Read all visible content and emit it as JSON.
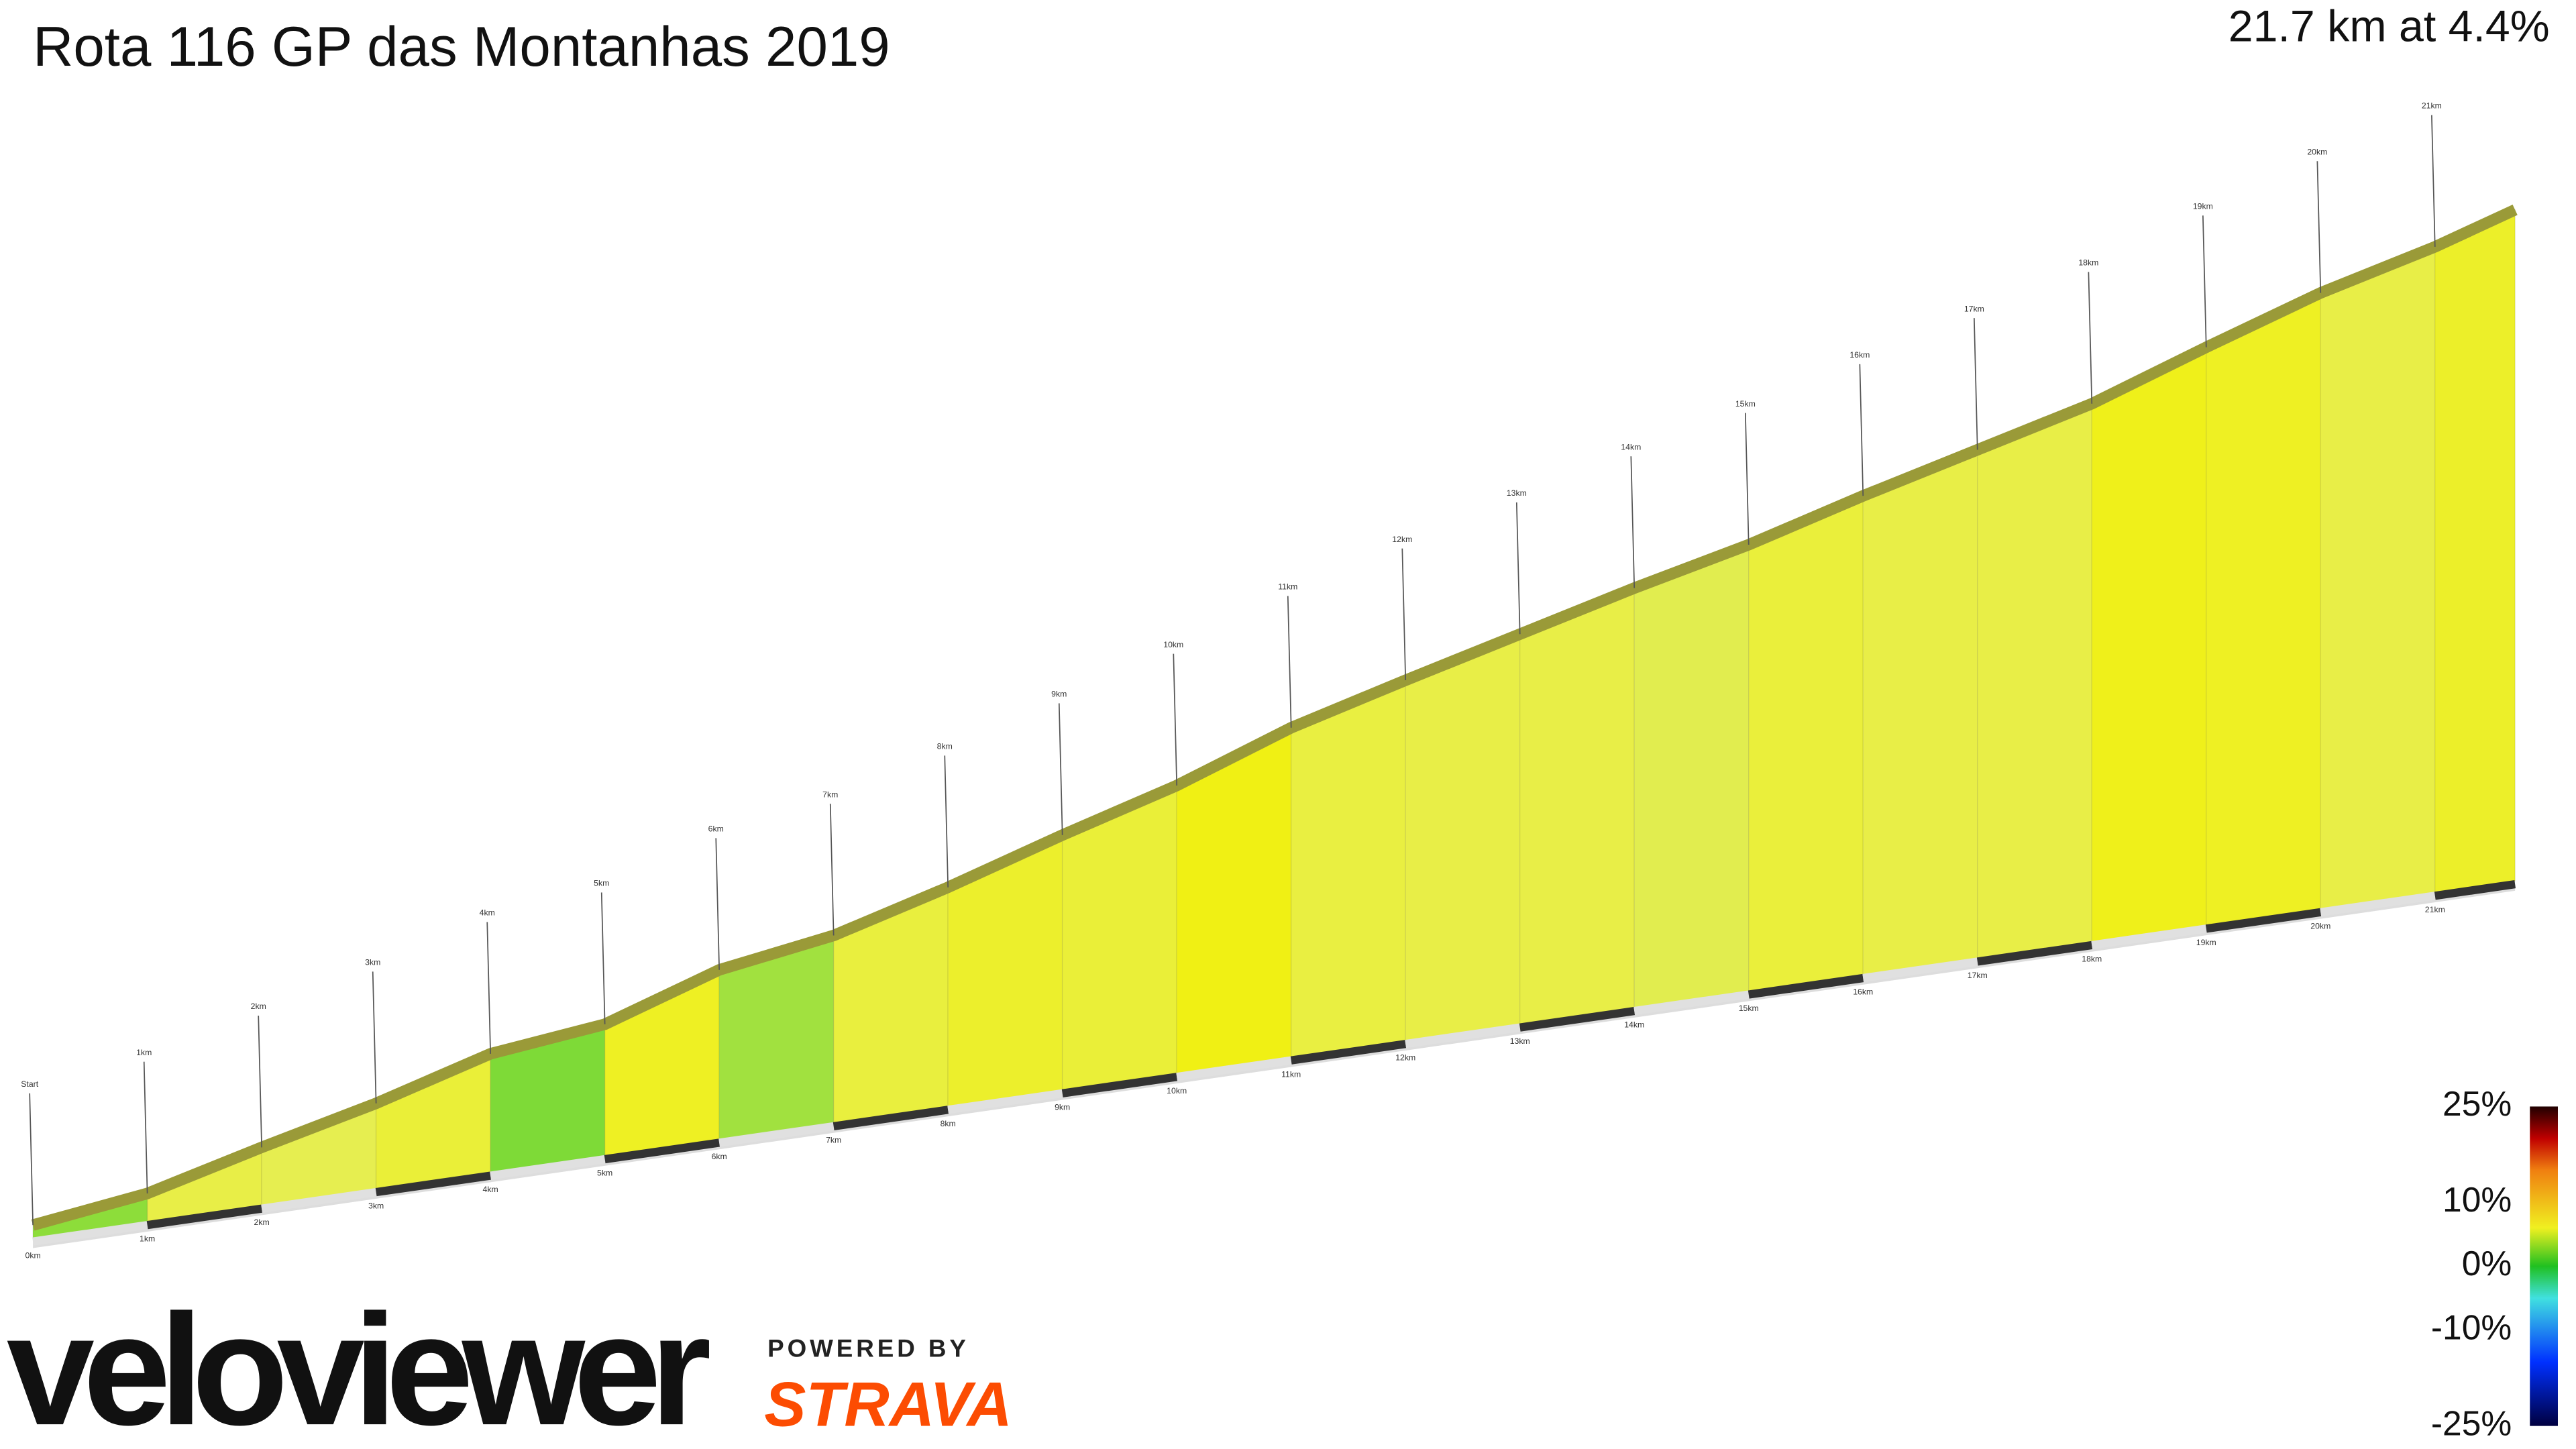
{
  "chart_data": {
    "type": "area",
    "title": "Rota 116 GP das Montanhas 2019",
    "subtitle": "21.7 km at 4.4%",
    "x": [
      0,
      1,
      2,
      3,
      4,
      5,
      6,
      7,
      8,
      9,
      10,
      11,
      12,
      13,
      14,
      15,
      16,
      17,
      18,
      19,
      20,
      21,
      21.7
    ],
    "values": [
      0,
      22,
      65,
      105,
      153,
      172,
      227,
      253,
      299,
      351,
      399,
      459,
      504,
      547,
      590,
      629,
      676,
      719,
      762,
      820,
      875,
      918,
      955
    ],
    "xticks": [
      {
        "value": 0,
        "label": "Start"
      },
      {
        "value": 1,
        "label": "1km"
      },
      {
        "value": 2,
        "label": "2km"
      },
      {
        "value": 3,
        "label": "3km"
      },
      {
        "value": 4,
        "label": "4km"
      },
      {
        "value": 5,
        "label": "5km"
      },
      {
        "value": 6,
        "label": "6km"
      },
      {
        "value": 7,
        "label": "7km"
      },
      {
        "value": 8,
        "label": "8km"
      },
      {
        "value": 9,
        "label": "9km"
      },
      {
        "value": 10,
        "label": "10km"
      },
      {
        "value": 11,
        "label": "11km"
      },
      {
        "value": 12,
        "label": "12km"
      },
      {
        "value": 13,
        "label": "13km"
      },
      {
        "value": 14,
        "label": "14km"
      },
      {
        "value": 15,
        "label": "15km"
      },
      {
        "value": 16,
        "label": "16km"
      },
      {
        "value": 17,
        "label": "17km"
      },
      {
        "value": 18,
        "label": "18km"
      },
      {
        "value": 19,
        "label": "19km"
      },
      {
        "value": 20,
        "label": "20km"
      },
      {
        "value": 21,
        "label": "21km"
      }
    ],
    "base_ticks": [
      {
        "value": 0,
        "label": "0km"
      },
      {
        "value": 1,
        "label": "1km"
      },
      {
        "value": 2,
        "label": "2km"
      },
      {
        "value": 3,
        "label": "3km"
      },
      {
        "value": 4,
        "label": "4km"
      },
      {
        "value": 5,
        "label": "5km"
      },
      {
        "value": 6,
        "label": "6km"
      },
      {
        "value": 7,
        "label": "7km"
      },
      {
        "value": 8,
        "label": "8km"
      },
      {
        "value": 9,
        "label": "9km"
      },
      {
        "value": 10,
        "label": "10km"
      },
      {
        "value": 11,
        "label": "11km"
      },
      {
        "value": 12,
        "label": "12km"
      },
      {
        "value": 13,
        "label": "13km"
      },
      {
        "value": 14,
        "label": "14km"
      },
      {
        "value": 15,
        "label": "15km"
      },
      {
        "value": 16,
        "label": "16km"
      },
      {
        "value": 17,
        "label": "17km"
      },
      {
        "value": 18,
        "label": "18km"
      },
      {
        "value": 19,
        "label": "19km"
      },
      {
        "value": 20,
        "label": "20km"
      },
      {
        "value": 21,
        "label": "21km"
      }
    ],
    "color_scale": {
      "lim": [
        -25,
        25
      ],
      "ticks": [
        {
          "value": 25,
          "label": "25%"
        },
        {
          "value": 10,
          "label": "10%"
        },
        {
          "value": 0,
          "label": "0%"
        },
        {
          "value": -10,
          "label": "-10%"
        },
        {
          "value": -25,
          "label": "-25%"
        }
      ]
    }
  },
  "branding": {
    "logo": "veloviewer",
    "powered_by": "POWERED BY",
    "partner": "STRAVA"
  }
}
